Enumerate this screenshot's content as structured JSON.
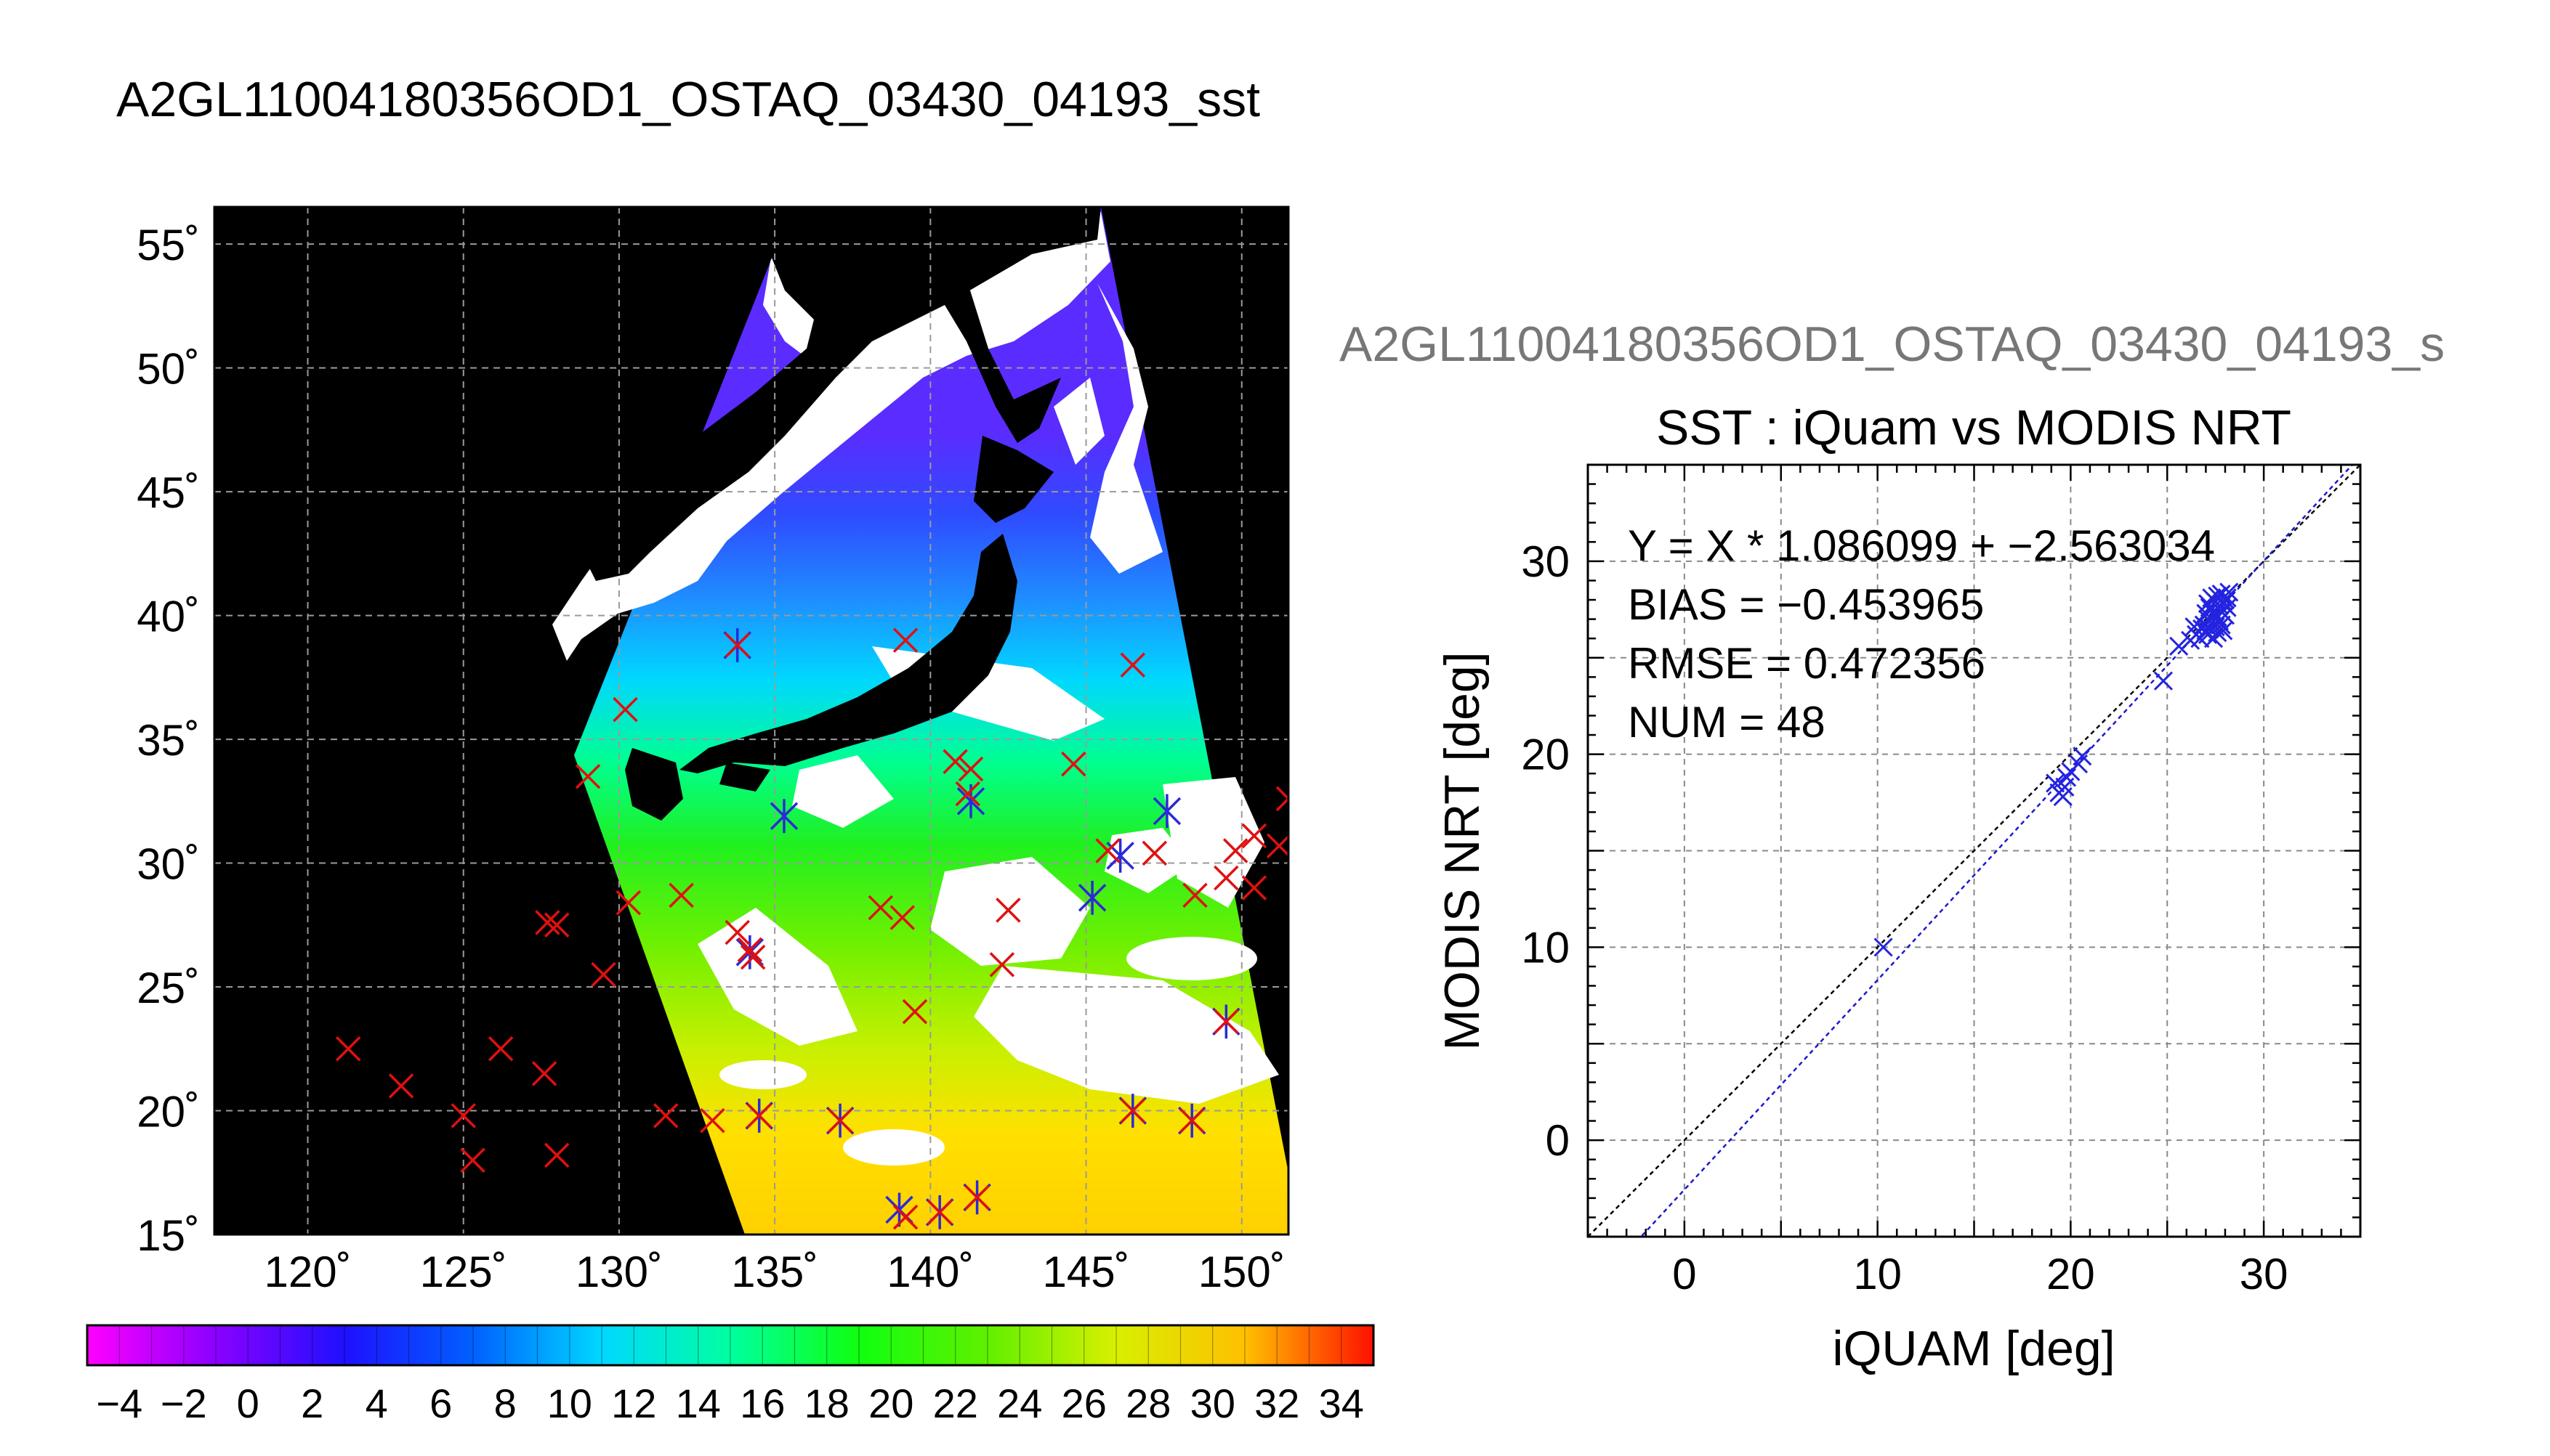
{
  "main_title": "A2GL11004180356OD1_OSTAQ_03430_04193_sst",
  "map": {
    "lat_labels": [
      "15˚",
      "20˚",
      "25˚",
      "30˚",
      "35˚",
      "40˚",
      "45˚",
      "50˚",
      "55˚"
    ],
    "lon_labels": [
      "120˚",
      "125˚",
      "130˚",
      "135˚",
      "140˚",
      "145˚",
      "150˚"
    ],
    "lat_values": [
      15,
      20,
      25,
      30,
      35,
      40,
      45,
      50,
      55
    ],
    "lon_values": [
      120,
      125,
      130,
      135,
      140,
      145,
      150
    ],
    "lon_range": [
      117,
      151.5
    ],
    "lat_range": [
      15,
      56.5
    ],
    "red_markers": [
      [
        121.3,
        22.5
      ],
      [
        123,
        21
      ],
      [
        125,
        19.8
      ],
      [
        125.3,
        18
      ],
      [
        126.2,
        22.5
      ],
      [
        127.6,
        21.5
      ],
      [
        128,
        18.2
      ],
      [
        127.7,
        27.6
      ],
      [
        128,
        27.5
      ],
      [
        129.5,
        25.5
      ],
      [
        130.3,
        28.4
      ],
      [
        132,
        28.7
      ],
      [
        131.5,
        19.8
      ],
      [
        133,
        19.6
      ],
      [
        133.8,
        27.2
      ],
      [
        134.2,
        26.5
      ],
      [
        134.3,
        26.2
      ],
      [
        134.5,
        19.8
      ],
      [
        137.1,
        19.6
      ],
      [
        130.2,
        36.2
      ],
      [
        129,
        33.5
      ],
      [
        133.8,
        38.8
      ],
      [
        139.2,
        39
      ],
      [
        138.4,
        28.2
      ],
      [
        139.1,
        27.8
      ],
      [
        139.5,
        24
      ],
      [
        141.2,
        32.8
      ],
      [
        140.8,
        34.1
      ],
      [
        141.3,
        33.8
      ],
      [
        142.5,
        28.1
      ],
      [
        142.3,
        25.9
      ],
      [
        144.6,
        34
      ],
      [
        145.7,
        30.5
      ],
      [
        146.5,
        38
      ],
      [
        147.2,
        30.4
      ],
      [
        148.5,
        28.7
      ],
      [
        149.5,
        29.4
      ],
      [
        149.8,
        30.5
      ],
      [
        150.4,
        31.1
      ],
      [
        151.2,
        30.7
      ],
      [
        151.5,
        32.6
      ],
      [
        150.4,
        29
      ],
      [
        149.5,
        23.6
      ],
      [
        146.5,
        20
      ],
      [
        148.4,
        19.6
      ],
      [
        141.5,
        16.5
      ],
      [
        140.3,
        15.9
      ],
      [
        139.2,
        15.7
      ]
    ],
    "star_markers": [
      [
        135.3,
        31.9
      ],
      [
        141.3,
        32.5
      ],
      [
        134.5,
        19.8
      ],
      [
        137.1,
        19.6
      ],
      [
        146.1,
        30.3
      ],
      [
        145.2,
        28.6
      ],
      [
        147.6,
        32.1
      ],
      [
        149.5,
        23.6
      ],
      [
        146.5,
        20
      ],
      [
        148.4,
        19.6
      ],
      [
        141.5,
        16.5
      ],
      [
        140.3,
        15.9
      ],
      [
        139,
        16
      ],
      [
        134.2,
        26.4
      ],
      [
        133.8,
        38.8
      ]
    ]
  },
  "colorbar": {
    "tick_labels": [
      "−4",
      "−2",
      "0",
      "2",
      "4",
      "6",
      "8",
      "10",
      "12",
      "14",
      "16",
      "18",
      "20",
      "22",
      "24",
      "26",
      "28",
      "30",
      "32",
      "34"
    ],
    "min": -5,
    "max": 35
  },
  "scatter_title_overflow": "A2GL11004180356OD1_OSTAQ_03430_04193_s",
  "chart_data": {
    "type": "scatter",
    "title": "SST : iQuam vs MODIS NRT",
    "xlabel": "iQUAM [deg]",
    "ylabel": "MODIS NRT [deg]",
    "xlim": [
      -5,
      35
    ],
    "ylim": [
      -5,
      35
    ],
    "xtick_values": [
      0,
      10,
      20,
      30
    ],
    "ytick_values": [
      0,
      10,
      20,
      30
    ],
    "xtick_labels": [
      "0",
      "10",
      "20",
      "30"
    ],
    "ytick_labels": [
      "0",
      "10",
      "20",
      "30"
    ],
    "grid": true,
    "annotations": [
      "Y = X * 1.086099 + −2.563034",
      "BIAS = −0.453965",
      "RMSE = 0.472356",
      "NUM = 48"
    ],
    "fit": {
      "slope": 1.086099,
      "intercept": -2.563034
    },
    "points": [
      [
        10.3,
        10.0
      ],
      [
        19.2,
        18.5
      ],
      [
        19.4,
        18.0
      ],
      [
        19.6,
        17.8
      ],
      [
        19.7,
        18.3
      ],
      [
        19.8,
        18.8
      ],
      [
        20.0,
        19.1
      ],
      [
        20.4,
        19.5
      ],
      [
        20.6,
        19.9
      ],
      [
        24.8,
        23.8
      ],
      [
        25.6,
        25.6
      ],
      [
        26.2,
        25.9
      ],
      [
        26.5,
        26.2
      ],
      [
        26.7,
        26.0
      ],
      [
        26.9,
        26.7
      ],
      [
        27.0,
        26.4
      ],
      [
        27.1,
        27.0
      ],
      [
        27.1,
        26.2
      ],
      [
        27.2,
        27.6
      ],
      [
        27.3,
        26.8
      ],
      [
        27.3,
        28.1
      ],
      [
        27.4,
        27.3
      ],
      [
        27.4,
        26.0
      ],
      [
        27.5,
        27.9
      ],
      [
        27.5,
        26.6
      ],
      [
        27.6,
        28.2
      ],
      [
        27.6,
        27.1
      ],
      [
        27.7,
        27.7
      ],
      [
        27.7,
        26.9
      ],
      [
        27.8,
        28.3
      ],
      [
        27.8,
        27.4
      ],
      [
        27.9,
        27.8
      ],
      [
        27.9,
        26.4
      ],
      [
        28.0,
        28.0
      ],
      [
        28.0,
        27.2
      ],
      [
        28.1,
        27.6
      ],
      [
        28.2,
        28.4
      ],
      [
        27.2,
        26.5
      ],
      [
        27.0,
        27.3
      ],
      [
        26.8,
        26.5
      ],
      [
        27.5,
        27.2
      ],
      [
        27.9,
        27.9
      ],
      [
        28.1,
        28.1
      ],
      [
        26.4,
        26.6
      ],
      [
        27.6,
        26.3
      ],
      [
        27.3,
        27.5
      ],
      [
        27.8,
        26.7
      ],
      [
        27.1,
        27.8
      ]
    ]
  }
}
